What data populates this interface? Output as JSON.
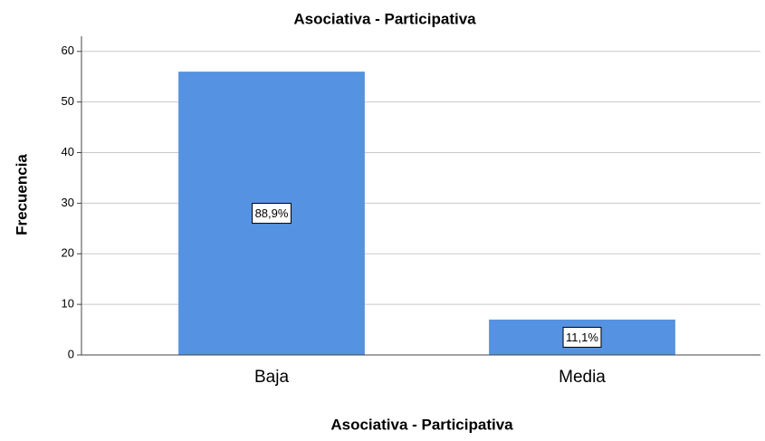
{
  "chart_data": {
    "type": "bar",
    "title": "Asociativa - Participativa",
    "x_label": "Asociativa - Participativa",
    "y_label": "Frecuencia",
    "categories": [
      "Baja",
      "Media"
    ],
    "values": [
      56,
      7
    ],
    "data_labels": [
      "88,9%",
      "11,1%"
    ],
    "color": "#5592e2",
    "ylim": [
      0,
      63
    ],
    "yticks": [
      0,
      10,
      20,
      30,
      40,
      50,
      60
    ],
    "grid": true
  }
}
